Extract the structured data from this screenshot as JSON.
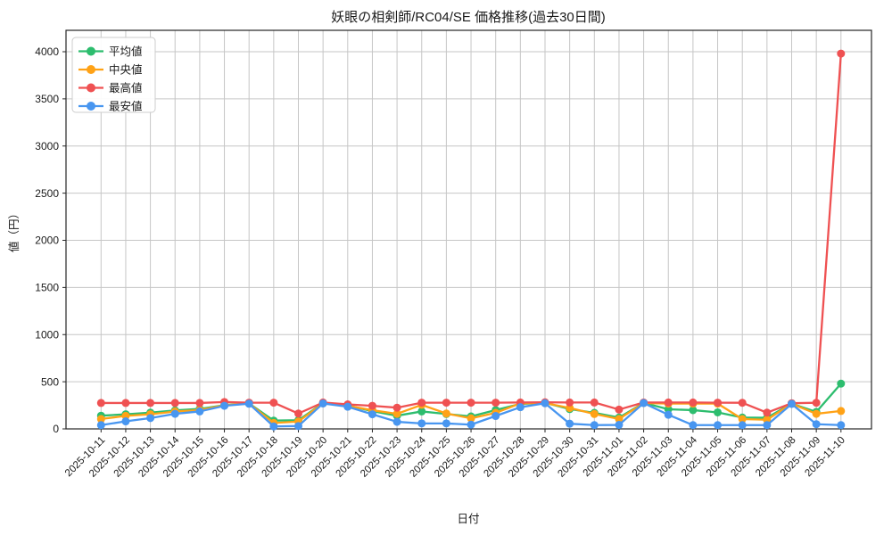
{
  "chart_data": {
    "type": "line",
    "title": "妖眼の相剣師/RC04/SE 価格推移(過去30日間)",
    "xlabel": "日付",
    "ylabel": "値（円）",
    "ylim": [
      0,
      4000
    ],
    "yticks": [
      0,
      500,
      1000,
      1500,
      2000,
      2500,
      3000,
      3500,
      4000
    ],
    "grid": true,
    "legend_position": "upper-left",
    "x": [
      "2025-10-11",
      "2025-10-12",
      "2025-10-13",
      "2025-10-14",
      "2025-10-15",
      "2025-10-16",
      "2025-10-17",
      "2025-10-18",
      "2025-10-19",
      "2025-10-20",
      "2025-10-21",
      "2025-10-22",
      "2025-10-23",
      "2025-10-24",
      "2025-10-25",
      "2025-10-26",
      "2025-10-27",
      "2025-10-28",
      "2025-10-29",
      "2025-10-30",
      "2025-10-31",
      "2025-11-01",
      "2025-11-02",
      "2025-11-03",
      "2025-11-04",
      "2025-11-05",
      "2025-11-06",
      "2025-11-07",
      "2025-11-08",
      "2025-11-09",
      "2025-11-10"
    ],
    "series": [
      {
        "name": "平均値",
        "color": "#2dbd6e",
        "values": [
          140,
          155,
          172,
          196,
          212,
          252,
          270,
          88,
          92,
          273,
          248,
          188,
          140,
          185,
          158,
          132,
          200,
          265,
          276,
          210,
          170,
          120,
          276,
          208,
          199,
          175,
          120,
          118,
          268,
          180,
          480
        ]
      },
      {
        "name": "中央値",
        "color": "#ffa216",
        "values": [
          105,
          138,
          155,
          184,
          200,
          250,
          269,
          63,
          78,
          271,
          245,
          198,
          160,
          255,
          163,
          112,
          170,
          271,
          274,
          222,
          158,
          105,
          275,
          268,
          268,
          268,
          104,
          97,
          267,
          160,
          190
        ]
      },
      {
        "name": "最高値",
        "color": "#ef5152",
        "values": [
          275,
          275,
          275,
          275,
          275,
          285,
          278,
          278,
          163,
          280,
          260,
          245,
          225,
          278,
          278,
          278,
          278,
          280,
          282,
          280,
          280,
          205,
          280,
          280,
          280,
          278,
          277,
          172,
          272,
          277,
          3980
        ]
      },
      {
        "name": "最安値",
        "color": "#4896f0",
        "values": [
          40,
          80,
          115,
          160,
          185,
          245,
          267,
          26,
          30,
          270,
          235,
          155,
          75,
          58,
          58,
          45,
          137,
          230,
          272,
          55,
          40,
          42,
          274,
          150,
          40,
          40,
          40,
          40,
          265,
          50,
          40
        ]
      }
    ]
  }
}
